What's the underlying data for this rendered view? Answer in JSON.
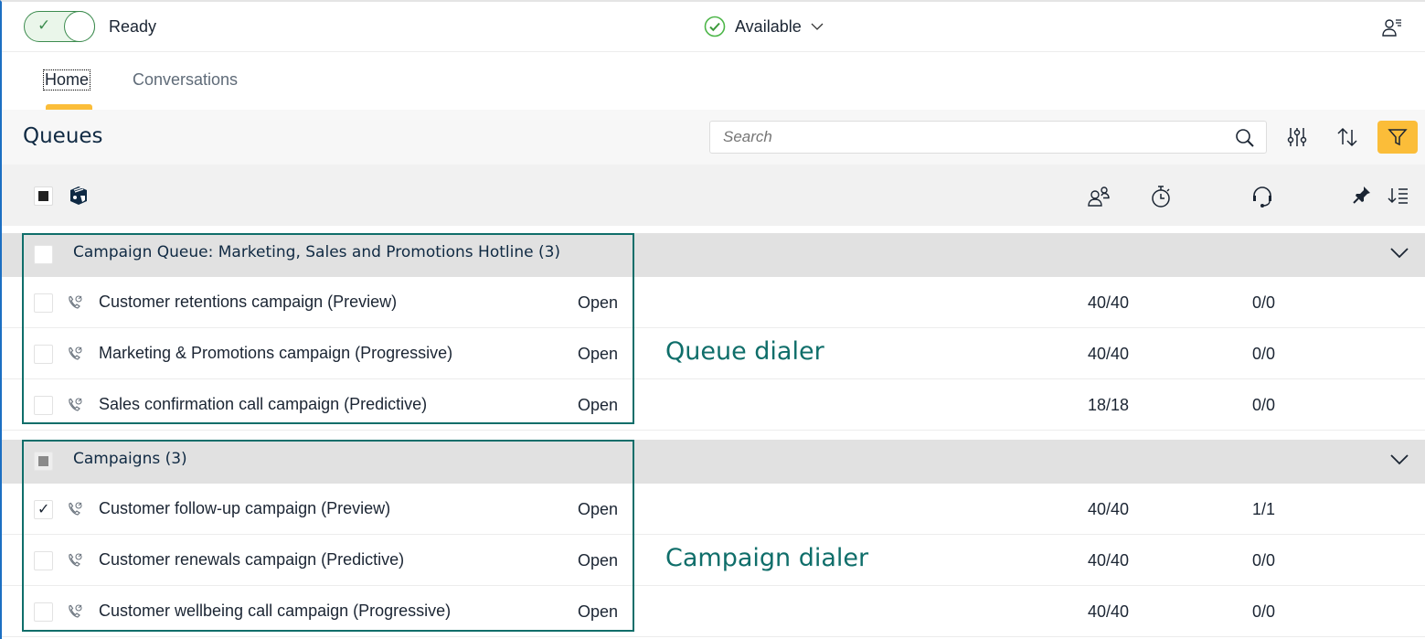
{
  "status": {
    "toggle_label": "Ready",
    "toggle_on": true,
    "presence": "Available"
  },
  "tabs": [
    {
      "label": "Home",
      "active": true
    },
    {
      "label": "Conversations",
      "active": false
    }
  ],
  "queues": {
    "title": "Queues",
    "search_placeholder": "Search"
  },
  "icons": {
    "settings": "sliders-icon",
    "sort": "sort-icon",
    "filter": "filter-icon",
    "agents": "agents-icon",
    "timer": "stopwatch-icon",
    "headset": "headset-icon",
    "pin": "pin-icon",
    "sort_list": "sort-list-icon",
    "row": "phone-campaign-icon",
    "user_menu": "user-menu-icon"
  },
  "colors": {
    "accent": "#fbbd39",
    "annotation": "#0f6e6a",
    "ready": "#3d8c4f"
  },
  "groups": [
    {
      "title": "Campaign Queue: Marketing, Sales and Promotions Hotline (3)",
      "annotation": "Queue dialer",
      "rows": [
        {
          "name": "Customer retentions campaign (Preview)",
          "status": "Open",
          "agents": "40/40",
          "active": "0/0",
          "checked": false
        },
        {
          "name": "Marketing & Promotions campaign (Progressive)",
          "status": "Open",
          "agents": "40/40",
          "active": "0/0",
          "checked": false
        },
        {
          "name": "Sales confirmation call campaign (Predictive)",
          "status": "Open",
          "agents": "18/18",
          "active": "0/0",
          "checked": false
        }
      ]
    },
    {
      "title": "Campaigns (3)",
      "annotation": "Campaign dialer",
      "rows": [
        {
          "name": "Customer follow-up campaign (Preview)",
          "status": "Open",
          "agents": "40/40",
          "active": "1/1",
          "checked": true
        },
        {
          "name": "Customer renewals campaign (Predictive)",
          "status": "Open",
          "agents": "40/40",
          "active": "0/0",
          "checked": false
        },
        {
          "name": "Customer wellbeing call campaign (Progressive)",
          "status": "Open",
          "agents": "40/40",
          "active": "0/0",
          "checked": false
        }
      ]
    }
  ]
}
